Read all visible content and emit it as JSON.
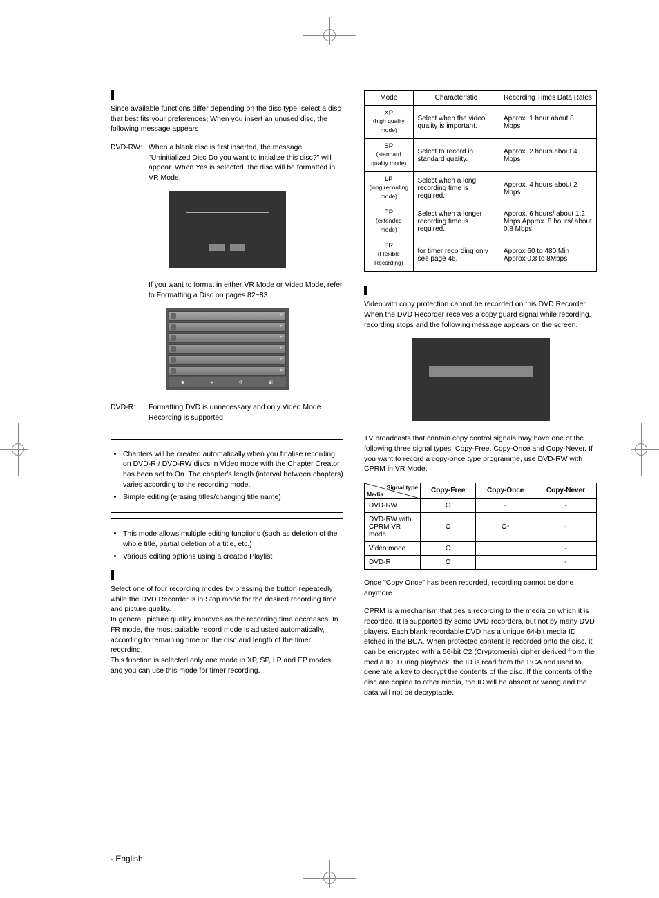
{
  "left": {
    "intro": "Since available functions differ depending on the disc type, select a disc that best fits your preferences; When you insert an unused disc, the following message appears",
    "dvdrw_label": "DVD-RW:",
    "dvdrw_text": "When a blank disc is first inserted, the message \"Uninitialized Disc Do you want to initialize this disc?\" will appear. When Yes is selected, the disc will be formatted in VR Mode.",
    "format_note": "If you want to format in either VR Mode or Video Mode, refer to Formatting a Disc on pages 82~83.",
    "dvdr_label": "DVD-R:",
    "dvdr_text": "Formatting DVD is unnecessary and only Video Mode Recording is supported",
    "bullets1": [
      "Chapters will be created automatically when you finalise recording on DVD-R / DVD-RW discs in Video mode with the Chapter Creator has been set to On. The chapter's length (interval between chapters) varies according to the recording mode.",
      "Simple editing (erasing titles/changing title name)"
    ],
    "bullets2": [
      "This mode allows multiple editing functions (such as deletion of the whole title, partial deletion of a title, etc.)",
      "Various editing options using a created Playlist"
    ],
    "recmode": "Select one of four recording modes by pressing the            button repeatedly while the DVD Recorder is in Stop mode for the desired recording time and picture quality.\nIn general, picture quality improves as the recording time decreases. In FR mode, the most suitable record mode is adjusted automatically, according to remaining time on the disc and length of the timer recording.\nThis function is selected only one mode in XP, SP, LP and EP modes and you can use this mode for timer recording."
  },
  "modes_table": {
    "headers": [
      "Mode",
      "Characteristic",
      "Recording Times Data Rates"
    ],
    "rows": [
      {
        "mode": "XP",
        "sub": "(high quality mode)",
        "char": "Select when the video quality is important.",
        "rate": "Approx. 1 hour about 8 Mbps"
      },
      {
        "mode": "SP",
        "sub": "(standard quality mode)",
        "char": "Select to record in standard quality.",
        "rate": "Approx. 2 hours about 4 Mbps"
      },
      {
        "mode": "LP",
        "sub": "(long recording mode)",
        "char": "Select when a long recording time is required.",
        "rate": "Approx. 4 hours about 2 Mbps"
      },
      {
        "mode": "EP",
        "sub": "(extended mode)",
        "char": "Select when a longer recording time is required.",
        "rate": "Approx. 6 hours/ about 1,2 Mbps Approx. 8 hours/ about 0,8 Mbps"
      },
      {
        "mode": "FR",
        "sub": "(Flexible Recording)",
        "char": "for timer recording only see page 46.",
        "rate": "Approx 60 to 480 Min Approx 0,8 to 8Mbps"
      }
    ]
  },
  "right": {
    "copy1": "Video with copy protection cannot be recorded on this DVD Recorder.\nWhen the DVD Recorder receives a copy guard signal while recording, recording stops and the following message appears on the screen.",
    "copy2": "TV broadcasts that contain copy control signals may have one of the following three signal types, Copy-Free, Copy-Once and Copy-Never. If you want to record a copy-once type programme, use DVD-RW with CPRM in VR Mode.",
    "copy3": "Once \"Copy Once\" has been recorded, recording cannot be done anymore.",
    "copy4": "CPRM is a mechanism that ties a recording to the media on which it is recorded. It is supported by some DVD recorders, but not by many DVD players. Each blank recordable DVD has a unique 64-bit media ID etched in the BCA. When protected content is recorded onto the disc, it can be encrypted with a 56-bit C2 (Cryptomeria) cipher derived from the media ID. During playback, the ID is read from the BCA and used to generate a key to decrypt the contents of the disc. If the contents of the disc are copied to other media, the ID will be absent or wrong and the data will not be decryptable."
  },
  "signal_table": {
    "diag_top": "Signal type",
    "diag_bot": "Media",
    "headers": [
      "Copy-Free",
      "Copy-Once",
      "Copy-Never"
    ],
    "rows": [
      {
        "media": "DVD-RW",
        "free": "O",
        "once": "-",
        "never": "-"
      },
      {
        "media": "DVD-RW with CPRM VR mode",
        "free": "O",
        "once": "O*",
        "never": "-"
      },
      {
        "media": "Video mode",
        "free": "O",
        "once": "",
        "never": "-"
      },
      {
        "media": "DVD-R",
        "free": "O",
        "once": "",
        "never": "-"
      }
    ]
  },
  "footer": "- English",
  "colors": {
    "screenshot_bg": "#333333",
    "menu_bg": "#555555",
    "border": "#000000"
  }
}
